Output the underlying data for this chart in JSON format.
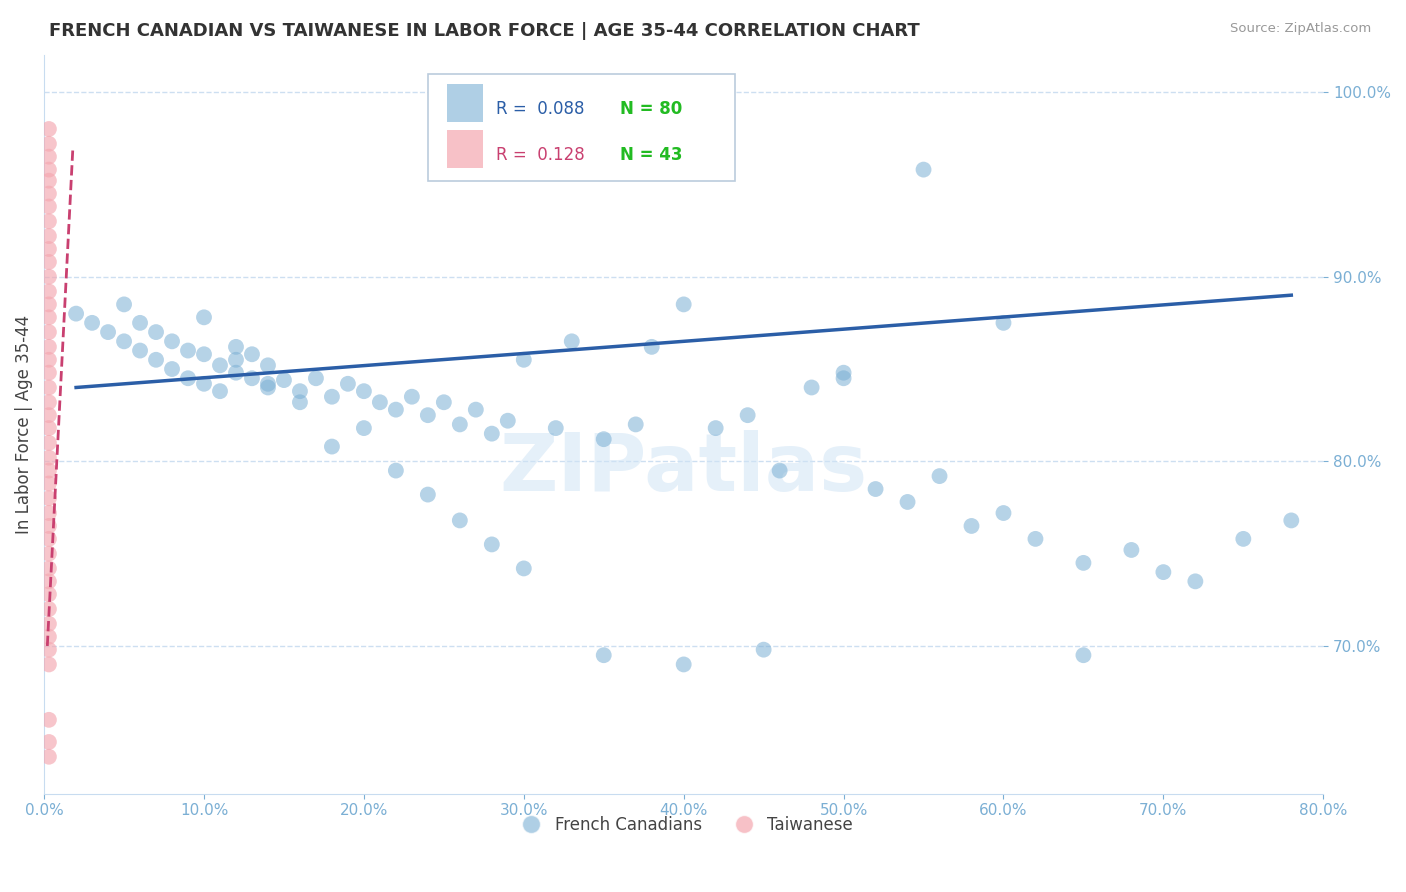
{
  "title": "FRENCH CANADIAN VS TAIWANESE IN LABOR FORCE | AGE 35-44 CORRELATION CHART",
  "source": "Source: ZipAtlas.com",
  "ylabel": "In Labor Force | Age 35-44",
  "xlim": [
    0.0,
    0.8
  ],
  "ylim": [
    0.62,
    1.02
  ],
  "xticks": [
    0.0,
    0.1,
    0.2,
    0.3,
    0.4,
    0.5,
    0.6,
    0.7,
    0.8
  ],
  "yticks": [
    0.7,
    0.8,
    0.9,
    1.0
  ],
  "blue_color": "#7BAFD4",
  "pink_color": "#F4A7B0",
  "trend_blue_color": "#2B5EA7",
  "trend_pink_color": "#C94070",
  "axis_color": "#7BAFD4",
  "grid_color": "#C8DCF0",
  "text_color": "#333333",
  "source_color": "#999999",
  "watermark_color": "#D0E4F5",
  "R_blue": 0.088,
  "N_blue": 80,
  "R_pink": 0.128,
  "N_pink": 43,
  "blue_trend_x0": 0.02,
  "blue_trend_y0": 0.84,
  "blue_trend_x1": 0.78,
  "blue_trend_y1": 0.89,
  "pink_trend_x0": 0.002,
  "pink_trend_y0": 0.7,
  "pink_trend_x1": 0.018,
  "pink_trend_y1": 0.97,
  "blue_x": [
    0.02,
    0.03,
    0.04,
    0.05,
    0.05,
    0.06,
    0.06,
    0.07,
    0.07,
    0.08,
    0.08,
    0.09,
    0.09,
    0.1,
    0.1,
    0.11,
    0.11,
    0.12,
    0.12,
    0.13,
    0.13,
    0.14,
    0.14,
    0.15,
    0.16,
    0.17,
    0.18,
    0.19,
    0.2,
    0.21,
    0.22,
    0.23,
    0.24,
    0.25,
    0.26,
    0.27,
    0.28,
    0.29,
    0.3,
    0.32,
    0.33,
    0.35,
    0.37,
    0.38,
    0.4,
    0.42,
    0.44,
    0.46,
    0.48,
    0.5,
    0.52,
    0.54,
    0.56,
    0.58,
    0.6,
    0.62,
    0.65,
    0.68,
    0.7,
    0.72,
    0.1,
    0.12,
    0.14,
    0.16,
    0.18,
    0.2,
    0.22,
    0.24,
    0.26,
    0.28,
    0.3,
    0.35,
    0.4,
    0.45,
    0.5,
    0.55,
    0.6,
    0.65,
    0.75,
    0.78
  ],
  "blue_y": [
    0.88,
    0.875,
    0.87,
    0.885,
    0.865,
    0.875,
    0.86,
    0.87,
    0.855,
    0.865,
    0.85,
    0.86,
    0.845,
    0.858,
    0.842,
    0.852,
    0.838,
    0.848,
    0.862,
    0.845,
    0.858,
    0.84,
    0.852,
    0.844,
    0.838,
    0.845,
    0.835,
    0.842,
    0.838,
    0.832,
    0.828,
    0.835,
    0.825,
    0.832,
    0.82,
    0.828,
    0.815,
    0.822,
    0.855,
    0.818,
    0.865,
    0.812,
    0.82,
    0.862,
    0.885,
    0.818,
    0.825,
    0.795,
    0.84,
    0.848,
    0.785,
    0.778,
    0.792,
    0.765,
    0.772,
    0.758,
    0.745,
    0.752,
    0.74,
    0.735,
    0.878,
    0.855,
    0.842,
    0.832,
    0.808,
    0.818,
    0.795,
    0.782,
    0.768,
    0.755,
    0.742,
    0.695,
    0.69,
    0.698,
    0.845,
    0.958,
    0.875,
    0.695,
    0.758,
    0.768
  ],
  "pink_x": [
    0.003,
    0.003,
    0.003,
    0.003,
    0.003,
    0.003,
    0.003,
    0.003,
    0.003,
    0.003,
    0.003,
    0.003,
    0.003,
    0.003,
    0.003,
    0.003,
    0.003,
    0.003,
    0.003,
    0.003,
    0.003,
    0.003,
    0.003,
    0.003,
    0.003,
    0.003,
    0.003,
    0.003,
    0.003,
    0.003,
    0.003,
    0.003,
    0.003,
    0.003,
    0.003,
    0.003,
    0.003,
    0.003,
    0.003,
    0.003,
    0.003,
    0.003,
    0.003
  ],
  "pink_y": [
    0.98,
    0.972,
    0.965,
    0.958,
    0.952,
    0.945,
    0.938,
    0.93,
    0.922,
    0.915,
    0.908,
    0.9,
    0.892,
    0.885,
    0.878,
    0.87,
    0.862,
    0.855,
    0.848,
    0.84,
    0.832,
    0.825,
    0.818,
    0.81,
    0.802,
    0.795,
    0.788,
    0.78,
    0.772,
    0.765,
    0.758,
    0.75,
    0.742,
    0.735,
    0.728,
    0.72,
    0.712,
    0.705,
    0.698,
    0.69,
    0.66,
    0.648,
    0.64
  ]
}
